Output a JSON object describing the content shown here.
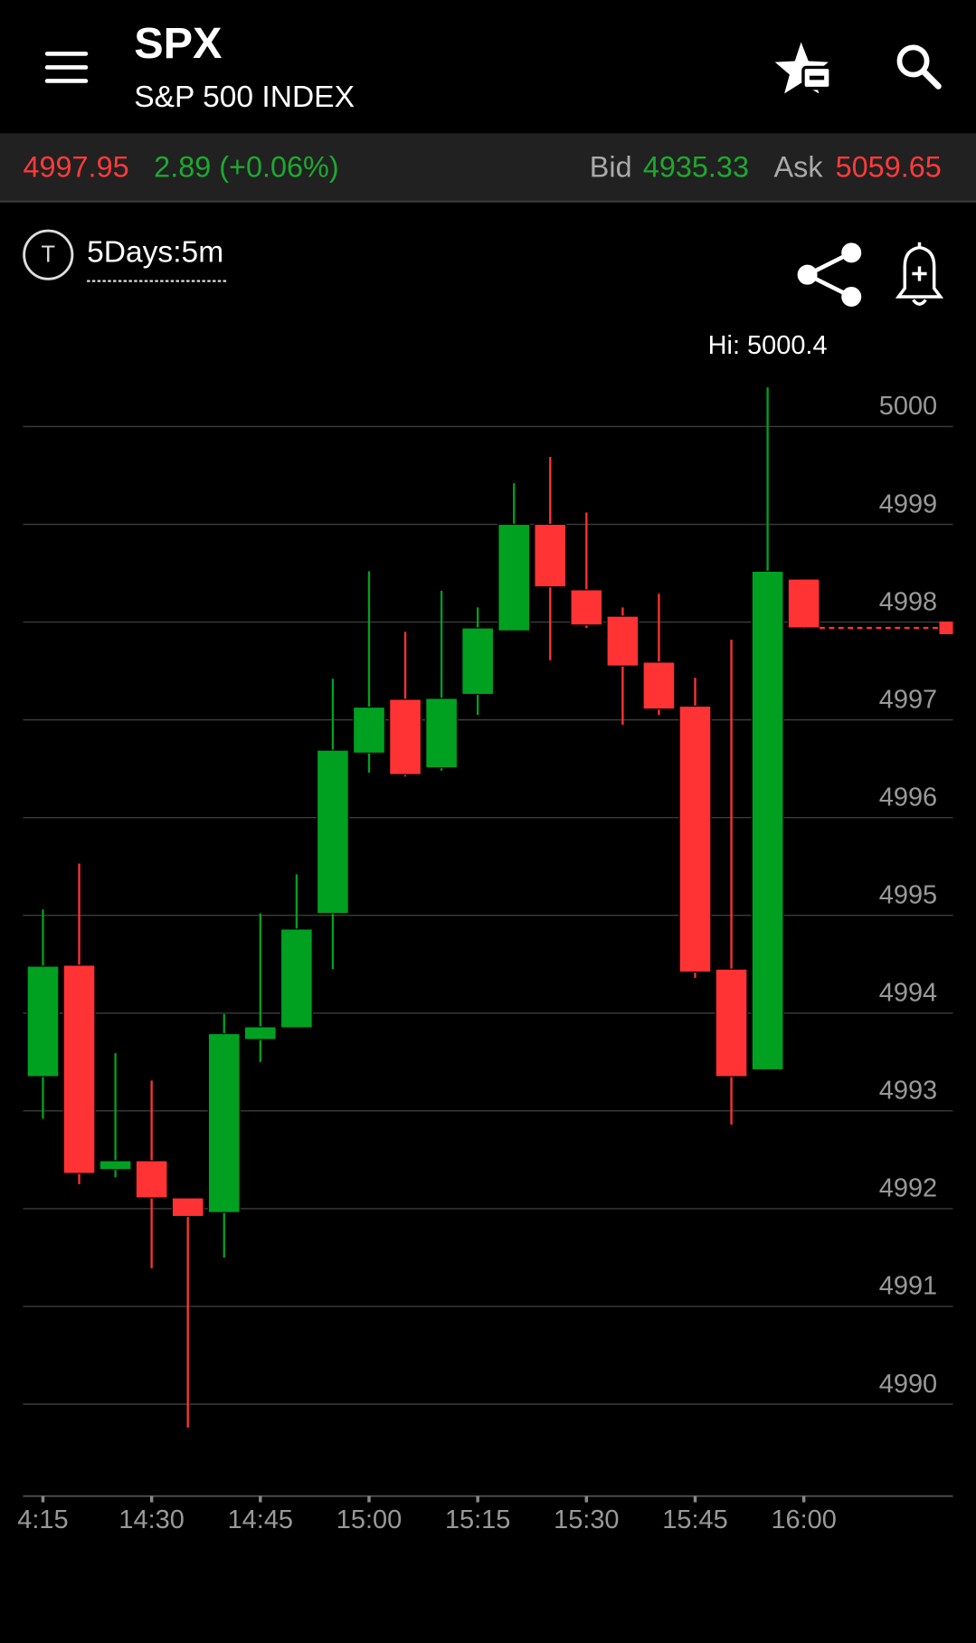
{
  "header": {
    "title": "SPX",
    "subtitle": "S&P 500 INDEX"
  },
  "quote": {
    "last": "4997.95",
    "change": "2.89 (+0.06%)",
    "bid_label": "Bid",
    "bid": "4935.33",
    "ask_label": "Ask",
    "ask": "5059.65"
  },
  "controls": {
    "timeframe_icon": "T",
    "timeframe": "5Days:5m"
  },
  "chart_data": {
    "type": "candlestick",
    "categories": [
      "4:15",
      null,
      null,
      "14:30",
      null,
      null,
      "14:45",
      null,
      null,
      "15:00",
      null,
      null,
      "15:15",
      null,
      null,
      "15:30",
      null,
      null,
      "15:45",
      null,
      null,
      "16:00"
    ],
    "open": [
      4993.35,
      4994.49,
      4992.4,
      4992.49,
      4992.11,
      4991.96,
      4993.73,
      4993.85,
      4995.02,
      4996.66,
      4997.21,
      4996.51,
      4997.26,
      4997.91,
      4999.0,
      4998.33,
      4998.06,
      4997.59,
      4997.14,
      4994.45,
      4993.42,
      4998.44
    ],
    "high": [
      4995.06,
      4995.53,
      4993.59,
      4993.31,
      4992.11,
      4993.99,
      4995.02,
      4995.42,
      4997.42,
      4998.52,
      4997.9,
      4998.32,
      4998.15,
      4999.42,
      4999.69,
      4999.12,
      4998.15,
      4998.29,
      4997.43,
      4997.82,
      5000.4,
      4998.44
    ],
    "low": [
      4992.92,
      4992.25,
      4992.32,
      4991.39,
      4989.76,
      4991.5,
      4993.5,
      4993.85,
      4994.45,
      4996.46,
      4996.42,
      4996.48,
      4997.05,
      4997.91,
      4997.61,
      4997.94,
      4996.95,
      4997.05,
      4994.36,
      4992.86,
      4993.42,
      4997.93
    ],
    "close": [
      4994.48,
      4992.36,
      4992.49,
      4992.11,
      4991.92,
      4993.79,
      4993.86,
      4994.86,
      4996.69,
      4997.13,
      4996.44,
      4997.22,
      4997.94,
      4999.0,
      4998.36,
      4997.97,
      4997.55,
      4997.11,
      4994.42,
      4993.35,
      4998.52,
      4997.94
    ],
    "up_color": "#00a120",
    "down_color": "#ff3333",
    "ylim": [
      4989.06,
      5000.61
    ],
    "yticks": [
      4990,
      4991,
      4992,
      4993,
      4994,
      4995,
      4996,
      4997,
      4998,
      4999,
      5000
    ],
    "grid": true,
    "annotation": "Hi: 5000.4"
  }
}
